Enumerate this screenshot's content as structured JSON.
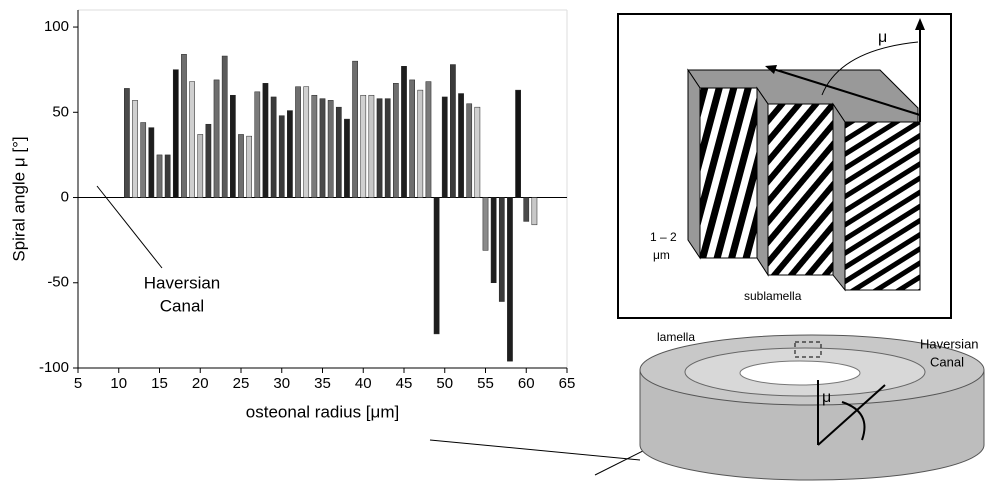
{
  "chart_data": {
    "type": "bar",
    "xlabel": "osteonal radius [μm]",
    "ylabel": "Spiral angle μ [°]",
    "annotation": [
      "Haversian",
      "Canal"
    ],
    "x": [
      11,
      12,
      13,
      14,
      15,
      16,
      17,
      18,
      19,
      20,
      21,
      22,
      23,
      24,
      25,
      26,
      27,
      28,
      29,
      30,
      31,
      32,
      33,
      34,
      35,
      36,
      37,
      38,
      39,
      40,
      41,
      42,
      43,
      44,
      45,
      46,
      47,
      48,
      49,
      50,
      51,
      52,
      53,
      54,
      55,
      56,
      57,
      58,
      59,
      60,
      61
    ],
    "values": [
      64,
      57,
      44,
      41,
      25,
      25,
      75,
      84,
      68,
      37,
      43,
      69,
      83,
      60,
      37,
      36,
      62,
      67,
      59,
      48,
      51,
      65,
      65,
      60,
      58,
      57,
      53,
      46,
      80,
      60,
      60,
      58,
      58,
      67,
      77,
      69,
      63,
      68,
      -80,
      59,
      78,
      61,
      55,
      53,
      -31,
      -50,
      -61,
      -96,
      63,
      -14,
      -16
    ],
    "colors": [
      "#4a4a4a",
      "#d0d0d0",
      "#7a7a7a",
      "#1e1e1e",
      "#6e6e6e",
      "#3a3a3a",
      "#141414",
      "#6e6e6e",
      "#cfcfcf",
      "#bdbdbd",
      "#3a3a3a",
      "#6e6e6e",
      "#5a5a5a",
      "#1e1e1e",
      "#6e6e6e",
      "#c8c8c8",
      "#7a7a7a",
      "#1e1e1e",
      "#3a3a3a",
      "#3a3a3a",
      "#1e1e1e",
      "#6e6e6e",
      "#d0d0d0",
      "#7a7a7a",
      "#4a4a4a",
      "#6e6e6e",
      "#3a3a3a",
      "#1e1e1e",
      "#6e6e6e",
      "#d0d0d0",
      "#c8c8c8",
      "#3a3a3a",
      "#3a3a3a",
      "#6e6e6e",
      "#1e1e1e",
      "#6e6e6e",
      "#c8c8c8",
      "#7a7a7a",
      "#1e1e1e",
      "#1e1e1e",
      "#3a3a3a",
      "#1e1e1e",
      "#6e6e6e",
      "#d0d0d0",
      "#8a8a8a",
      "#1e1e1e",
      "#3a3a3a",
      "#1e1e1e",
      "#141414",
      "#4a4a4a",
      "#c8c8c8"
    ],
    "xlim": [
      5,
      65
    ],
    "ylim": [
      -100,
      110
    ],
    "xticks": [
      5,
      10,
      15,
      20,
      25,
      30,
      35,
      40,
      45,
      50,
      55,
      60,
      65
    ],
    "yticks": [
      -100,
      -50,
      0,
      50,
      100
    ],
    "grid": false
  },
  "diagram": {
    "mu_top": "μ",
    "thickness": [
      "1 – 2",
      "μm"
    ],
    "sublamella": "sublamella",
    "lamella": "lamella",
    "canal": [
      "Haversian",
      "Canal"
    ],
    "mu_bottom": "μ"
  }
}
